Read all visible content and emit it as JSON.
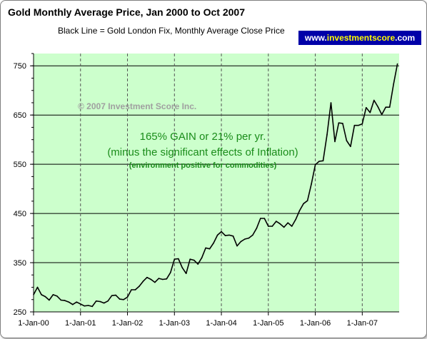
{
  "chart_data": {
    "type": "line",
    "title": "Gold Monthly Average Price, Jan 2000 to Oct 2007",
    "subtitle": "Black Line = Gold London Fix, Monthly Average Close Price",
    "badge": {
      "prefix": "www.",
      "accent": "investmentscore",
      "suffix": ".com"
    },
    "copyright": "© 2007 Investment Score Inc.",
    "annotations": [
      "165% GAIN or 21% per yr.",
      "(minus the significant effects of Inflation)",
      "(environment positive for commodities)"
    ],
    "xlabel": "",
    "ylabel": "",
    "ylim": [
      250,
      775
    ],
    "y_ticks": [
      250,
      350,
      450,
      550,
      650,
      750
    ],
    "x_ticks": [
      "1-Jan-00",
      "1-Jan-01",
      "1-Jan-02",
      "1-Jan-03",
      "1-Jan-04",
      "1-Jan-05",
      "1-Jan-06",
      "1-Jan-07"
    ],
    "grid": true,
    "background_color": "#ccffcc",
    "line_color": "#000000",
    "series": [
      {
        "name": "Gold London Fix, Monthly Average Close Price",
        "start": "2000-01",
        "values": [
          285,
          300,
          285,
          281,
          274,
          285,
          282,
          274,
          273,
          270,
          265,
          270,
          266,
          262,
          263,
          261,
          272,
          271,
          268,
          272,
          283,
          284,
          276,
          275,
          280,
          295,
          295,
          302,
          312,
          320,
          316,
          310,
          318,
          316,
          317,
          330,
          357,
          358,
          340,
          328,
          357,
          355,
          347,
          360,
          380,
          378,
          390,
          406,
          413,
          405,
          406,
          404,
          384,
          393,
          398,
          400,
          406,
          420,
          440,
          440,
          424,
          424,
          434,
          429,
          422,
          431,
          424,
          438,
          456,
          470,
          476,
          510,
          549,
          556,
          557,
          610,
          675,
          596,
          634,
          633,
          598,
          586,
          629,
          629,
          632,
          665,
          655,
          680,
          667,
          651,
          666,
          666,
          713,
          754
        ]
      }
    ]
  }
}
